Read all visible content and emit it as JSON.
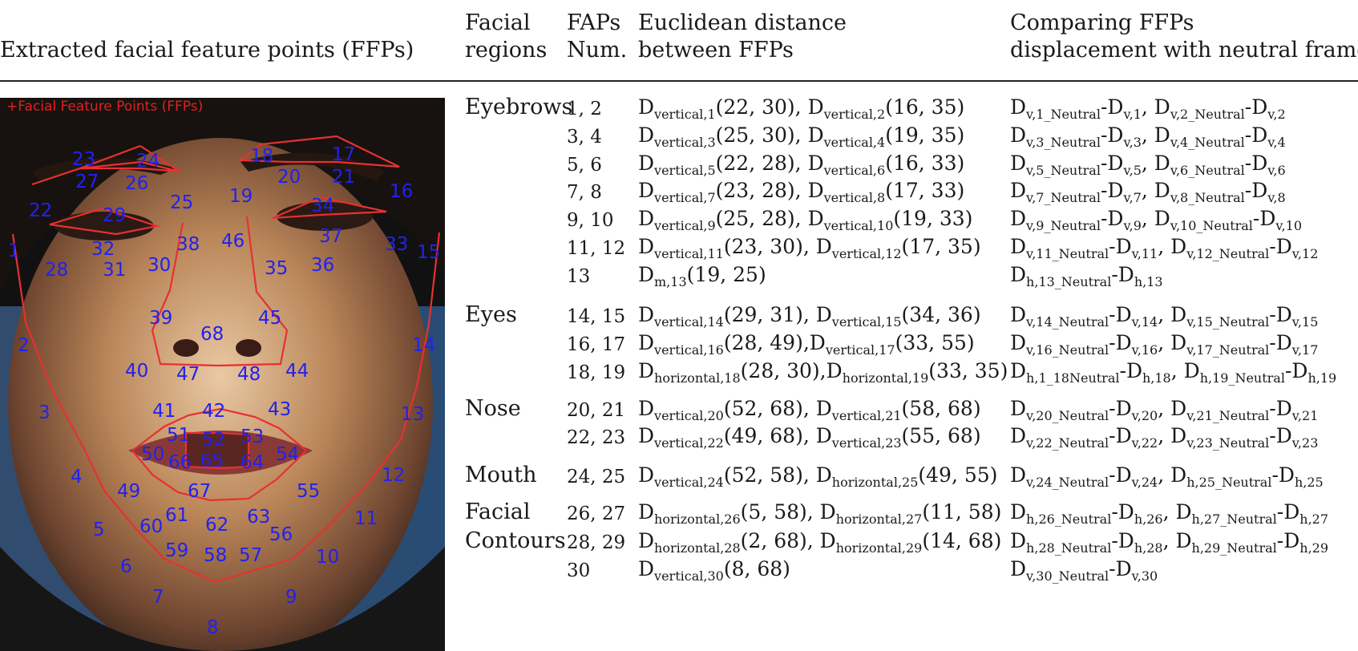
{
  "headers": {
    "ffp": "Extracted facial feature points (FFPs)",
    "regions_1": "Facial",
    "regions_2": "regions",
    "faps_1": "FAPs",
    "faps_2": "Num.",
    "dist_1": "Euclidean distance",
    "dist_2": "between FFPs",
    "cmp_1": "Comparing FFPs",
    "cmp_2": "displacement with neutral frame"
  },
  "figure": {
    "legend": "+Facial Feature Points (FFPs)",
    "colors": {
      "line": "#e83030",
      "label": "#2222ee",
      "bg": "#1a1a1a"
    }
  },
  "regions": {
    "eyebrows": "Eyebrows",
    "eyes": "Eyes",
    "nose": "Nose",
    "mouth": "Mouth",
    "facial": "Facial",
    "contours": "Contours"
  },
  "rows": [
    {
      "num": "1, 2",
      "d": [
        [
          "D",
          "vertical,1",
          "(22, 30), "
        ],
        [
          "D",
          "vertical,2",
          "(16, 35)"
        ]
      ],
      "c": [
        [
          "D",
          "v,1_Neutral",
          "-"
        ],
        [
          "D",
          "v,1",
          ", "
        ],
        [
          "D",
          "v,2_Neutral",
          "-"
        ],
        [
          "D",
          "v,2",
          ""
        ]
      ]
    },
    {
      "num": "3, 4",
      "d": [
        [
          "D",
          "vertical,3",
          "(25, 30), "
        ],
        [
          "D",
          "vertical,4",
          "(19, 35)"
        ]
      ],
      "c": [
        [
          "D",
          "v,3_Neutral",
          "-"
        ],
        [
          "D",
          "v,3",
          ", "
        ],
        [
          "D",
          "v,4_Neutral",
          "-"
        ],
        [
          "D",
          "v,4",
          ""
        ]
      ]
    },
    {
      "num": "5, 6",
      "d": [
        [
          "D",
          "vertical,5",
          "(22, 28), "
        ],
        [
          "D",
          "vertical,6",
          "(16, 33)"
        ]
      ],
      "c": [
        [
          "D",
          "v,5_Neutral",
          "-"
        ],
        [
          "D",
          "v,5",
          ", "
        ],
        [
          "D",
          "v,6_Neutral",
          "-"
        ],
        [
          "D",
          "v,6",
          ""
        ]
      ]
    },
    {
      "num": "7, 8",
      "d": [
        [
          "D",
          "vertical,7",
          "(23, 28), "
        ],
        [
          "D",
          "vertical,8",
          "(17, 33)"
        ]
      ],
      "c": [
        [
          "D",
          "v,7_Neutral",
          "-"
        ],
        [
          "D",
          "v,7",
          ", "
        ],
        [
          "D",
          "v,8_Neutral",
          "-"
        ],
        [
          "D",
          "v,8",
          ""
        ]
      ]
    },
    {
      "num": "9, 10",
      "d": [
        [
          "D",
          "vertical,9",
          "(25, 28), "
        ],
        [
          "D",
          "vertical,10",
          "(19, 33)"
        ]
      ],
      "c": [
        [
          "D",
          "v,9_Neutral",
          "-"
        ],
        [
          "D",
          "v,9",
          ", "
        ],
        [
          "D",
          "v,10_Neutral",
          "-"
        ],
        [
          "D",
          "v,10",
          ""
        ]
      ]
    },
    {
      "num": "11, 12",
      "d": [
        [
          "D",
          "vertical,11",
          "(23, 30), "
        ],
        [
          "D",
          "vertical,12",
          "(17, 35)"
        ]
      ],
      "c": [
        [
          "D",
          "v,11_Neutral",
          "-"
        ],
        [
          "D",
          "v,11",
          ", "
        ],
        [
          "D",
          "v,12_Neutral",
          "-"
        ],
        [
          "D",
          "v,12",
          ""
        ]
      ]
    },
    {
      "num": "13",
      "d": [
        [
          "D",
          "m,13",
          "(19, 25)"
        ]
      ],
      "c": [
        [
          "D",
          "h,13_Neutral",
          "-"
        ],
        [
          "D",
          "h,13",
          ""
        ]
      ]
    },
    {
      "num": "14, 15",
      "d": [
        [
          "D",
          "vertical,14",
          "(29, 31), "
        ],
        [
          "D",
          "vertical,15",
          "(34, 36)"
        ]
      ],
      "c": [
        [
          "D",
          "v,14_Neutral",
          "-"
        ],
        [
          "D",
          "v,14",
          ", "
        ],
        [
          "D",
          "v,15_Neutral",
          "-"
        ],
        [
          "D",
          "v,15",
          ""
        ]
      ]
    },
    {
      "num": "16, 17",
      "d": [
        [
          "D",
          "vertical,16",
          "(28, 49),"
        ],
        [
          "D",
          "vertical,17",
          "(33, 55)"
        ]
      ],
      "c": [
        [
          "D",
          "v,16_Neutral",
          "-"
        ],
        [
          "D",
          "v,16",
          ", "
        ],
        [
          "D",
          "v,17_Neutral",
          "-"
        ],
        [
          "D",
          "v,17",
          ""
        ]
      ]
    },
    {
      "num": "18, 19",
      "d": [
        [
          "D",
          "horizontal,18",
          "(28, 30),"
        ],
        [
          "D",
          "horizontal,19",
          "(33, 35)"
        ]
      ],
      "c": [
        [
          "D",
          "h,1_18Neutral",
          "-"
        ],
        [
          "D",
          "h,18",
          ", "
        ],
        [
          "D",
          "h,19_Neutral",
          "-"
        ],
        [
          "D",
          "h,19",
          ""
        ]
      ]
    },
    {
      "num": "20, 21",
      "d": [
        [
          "D",
          "vertical,20",
          "(52, 68), "
        ],
        [
          "D",
          "vertical,21",
          "(58, 68)"
        ]
      ],
      "c": [
        [
          "D",
          "v,20_Neutral",
          "-"
        ],
        [
          "D",
          "v,20",
          ", "
        ],
        [
          "D",
          "v,21_Neutral",
          "-"
        ],
        [
          "D",
          "v,21",
          ""
        ]
      ]
    },
    {
      "num": "22, 23",
      "d": [
        [
          "D",
          "vertical,22",
          "(49, 68), "
        ],
        [
          "D",
          "vertical,23",
          "(55, 68)"
        ]
      ],
      "c": [
        [
          "D",
          "v,22_Neutral",
          "-"
        ],
        [
          "D",
          "v,22",
          ", "
        ],
        [
          "D",
          "v,23_Neutral",
          "-"
        ],
        [
          "D",
          "v,23",
          ""
        ]
      ]
    },
    {
      "num": "24, 25",
      "d": [
        [
          "D",
          "vertical,24",
          "(52, 58), "
        ],
        [
          "D",
          "horizontal,25",
          "(49, 55)"
        ]
      ],
      "c": [
        [
          "D",
          "v,24_Neutral",
          "-"
        ],
        [
          "D",
          "v,24",
          ", "
        ],
        [
          "D",
          "h,25_Neutral",
          "-"
        ],
        [
          "D",
          "h,25",
          ""
        ]
      ]
    },
    {
      "num": "26, 27",
      "d": [
        [
          "D",
          "horizontal,26",
          "(5, 58), "
        ],
        [
          "D",
          "horizontal,27",
          "(11, 58)"
        ]
      ],
      "c": [
        [
          "D",
          "h,26_Neutral",
          "-"
        ],
        [
          "D",
          "h,26",
          ", "
        ],
        [
          "D",
          "h,27_Neutral",
          "-"
        ],
        [
          "D",
          "h,27",
          ""
        ]
      ]
    },
    {
      "num": "28, 29",
      "d": [
        [
          "D",
          "horizontal,28",
          "(2, 68), "
        ],
        [
          "D",
          "horizontal,29",
          "(14, 68)"
        ]
      ],
      "c": [
        [
          "D",
          "h,28_Neutral",
          "-"
        ],
        [
          "D",
          "h,28",
          ", "
        ],
        [
          "D",
          "h,29_Neutral",
          "-"
        ],
        [
          "D",
          "h,29",
          ""
        ]
      ]
    },
    {
      "num": "30",
      "d": [
        [
          "D",
          "vertical,30",
          "(8, 68)"
        ]
      ],
      "c": [
        [
          "D",
          "v,30_Neutral",
          "-"
        ],
        [
          "D",
          "v,30",
          ""
        ]
      ]
    }
  ]
}
